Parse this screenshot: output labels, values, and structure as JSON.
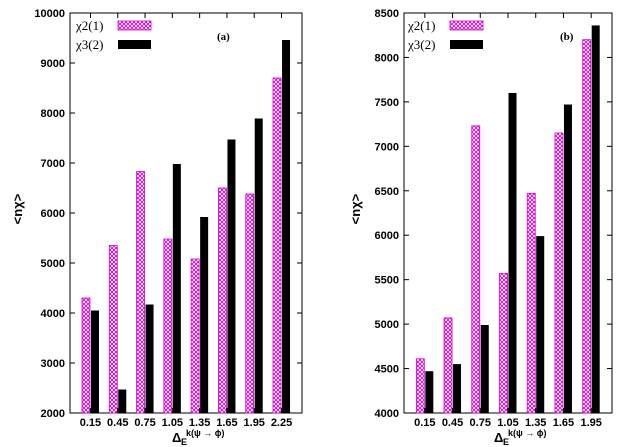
{
  "chart_data": [
    {
      "type": "bar",
      "panel_label": "(a)",
      "categories": [
        "0.15",
        "0.45",
        "0.75",
        "1.05",
        "1.35",
        "1.65",
        "1.95",
        "2.25"
      ],
      "series": [
        {
          "name": "χ2(1)",
          "values": [
            4300,
            5350,
            6830,
            5480,
            5080,
            6500,
            6380,
            8700
          ]
        },
        {
          "name": "χ3(2)",
          "values": [
            4050,
            2470,
            4170,
            6980,
            5920,
            7470,
            7890,
            9460
          ]
        }
      ],
      "ylim": [
        2000,
        10000
      ],
      "yticks": [
        "2000",
        "3000",
        "4000",
        "5000",
        "6000",
        "7000",
        "8000",
        "9000",
        "10000"
      ],
      "xlabel_main": "Δ",
      "xlabel_sub": "E",
      "xlabel_sup": "k(ψ → ϕ)",
      "ylabel": "<nχ>",
      "legend_position": "top-left"
    },
    {
      "type": "bar",
      "panel_label": "(b)",
      "categories": [
        "0.15",
        "0.45",
        "0.75",
        "1.05",
        "1.35",
        "1.65",
        "1.95"
      ],
      "series": [
        {
          "name": "χ2(1)",
          "values": [
            4610,
            5070,
            7230,
            5570,
            6470,
            7150,
            8200
          ]
        },
        {
          "name": "χ3(2)",
          "values": [
            4470,
            4550,
            4990,
            7600,
            5990,
            7470,
            8360
          ]
        }
      ],
      "ylim": [
        4000,
        8500
      ],
      "yticks": [
        "4000",
        "4500",
        "5000",
        "5500",
        "6000",
        "6500",
        "7000",
        "7500",
        "8000",
        "8500"
      ],
      "xlabel_main": "Δ",
      "xlabel_sub": "E",
      "xlabel_sup": "k(ψ → ϕ)",
      "ylabel": "<nχ>",
      "legend_position": "top-left"
    }
  ],
  "colors": {
    "series1_stroke": "#d000d0",
    "series1_fill": "#f4a6f4",
    "series2_fill": "#000000"
  }
}
